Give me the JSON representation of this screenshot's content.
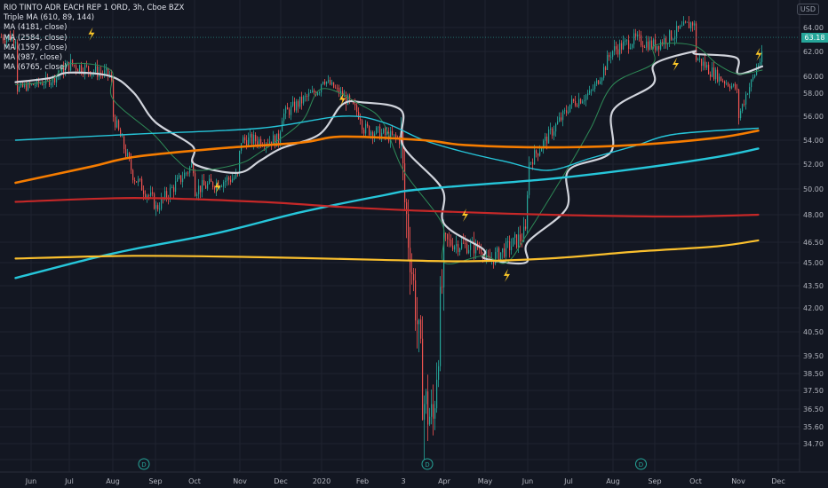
{
  "legend": {
    "title": "RIO TINTO ADR EACH REP 1 ORD, 3h, Cboe BZX",
    "studies": [
      "Triple MA (610, 89, 144)",
      "MA (4181, close)",
      "MA (2584, close)",
      "MA (1597, close)",
      "MA (987, close)",
      "MA (6765, close)"
    ]
  },
  "currency": "USD",
  "last_price": "63.18",
  "colors": {
    "background": "#131722",
    "grid": "#1f2330",
    "axis_text": "#b2b5be",
    "up": "#26a69a",
    "down": "#ef5350",
    "ma_white": "#d1d4dc",
    "ma_green": "#2e8b57",
    "ma_cyan_thin": "#26c6da",
    "ma_cyan_thick": "#26c6da",
    "ma_orange": "#f57c00",
    "ma_red": "#c62828",
    "ma_yellow": "#fbc02d",
    "bolt": "#ffca28",
    "event_marker": "#26a69a"
  },
  "chart_data": {
    "type": "candlestick",
    "y_axis_ticks": [
      "64.00",
      "62.00",
      "60.00",
      "58.00",
      "56.00",
      "54.00",
      "52.00",
      "50.00",
      "48.00",
      "46.50",
      "45.00",
      "43.50",
      "42.00",
      "40.50",
      "39.50",
      "38.50",
      "37.50",
      "36.50",
      "35.60",
      "34.70"
    ],
    "x_axis_ticks": [
      "Jun",
      "Jul",
      "Aug",
      "Sep",
      "Oct",
      "Nov",
      "Dec",
      "2020",
      "Feb",
      "3",
      "Apr",
      "May",
      "Jun",
      "Jul",
      "Aug",
      "Sep",
      "Oct",
      "Nov",
      "Dec"
    ],
    "event_markers": [
      {
        "label": "D",
        "date": "Sep 2019"
      },
      {
        "label": "D",
        "date": "Mar 2020"
      },
      {
        "label": "D",
        "date": "Aug 2020"
      }
    ],
    "price_anchors": [
      [
        "May 2019",
        58.5
      ],
      [
        "Jun 2019",
        59.5
      ],
      [
        "Jul 2019",
        61.0
      ],
      [
        "Jul 2019",
        60.0
      ],
      [
        "Aug 2019",
        56.0
      ],
      [
        "Aug 2019",
        51.0
      ],
      [
        "Aug 2019",
        49.0
      ],
      [
        "Sep 2019",
        48.5
      ],
      [
        "Sep 2019",
        52.0
      ],
      [
        "Oct 2019",
        50.0
      ],
      [
        "Oct 2019",
        51.0
      ],
      [
        "Nov 2019",
        54.0
      ],
      [
        "Nov 2019",
        54.0
      ],
      [
        "Dec 2019",
        56.0
      ],
      [
        "Dec 2019",
        58.5
      ],
      [
        "Jan 2020",
        59.8
      ],
      [
        "Jan 2020",
        56.0
      ],
      [
        "Feb 2020",
        55.0
      ],
      [
        "Feb 2020",
        54.0
      ],
      [
        "Mar 2020",
        49.5
      ],
      [
        "Mar 2020",
        43.5
      ],
      [
        "Mar 2020",
        37.0
      ],
      [
        "Mar 2020",
        35.7
      ],
      [
        "Mar 2020",
        44.0
      ],
      [
        "Apr 2020",
        46.5
      ],
      [
        "Apr 2020",
        46.0
      ],
      [
        "May 2020",
        45.0
      ],
      [
        "May 2020",
        47.0
      ],
      [
        "Jun 2020",
        52.0
      ],
      [
        "Jun 2020",
        56.5
      ],
      [
        "Jul 2020",
        57.0
      ],
      [
        "Jul 2020",
        58.0
      ],
      [
        "Jul 2020",
        62.0
      ],
      [
        "Aug 2020",
        63.0
      ],
      [
        "Sep 2020",
        62.5
      ],
      [
        "Sep 2020",
        64.5
      ],
      [
        "Oct 2020",
        61.5
      ],
      [
        "Oct 2020",
        60.0
      ],
      [
        "Oct 2020",
        58.5
      ],
      [
        "Nov 2020",
        56.0
      ],
      [
        "Nov 2020",
        61.0
      ],
      [
        "Nov 2020",
        63.2
      ]
    ],
    "moving_averages": [
      {
        "name": "MA white",
        "color_key": "ma_white",
        "width": 2.2,
        "points": [
          [
            "May 2019",
            59.3
          ],
          [
            "Jun 2019",
            59.8
          ],
          [
            "Jul 2019",
            60.3
          ],
          [
            "Jul 2019",
            60.0
          ],
          [
            "Aug 2019",
            58.0
          ],
          [
            "Sep 2019",
            55.5
          ],
          [
            "Sep 2019",
            53.5
          ],
          [
            "Oct 2019",
            52.0
          ],
          [
            "Oct 2019",
            51.3
          ],
          [
            "Nov 2019",
            52.3
          ],
          [
            "Dec 2019",
            53.3
          ],
          [
            "Dec 2019",
            54.5
          ],
          [
            "Jan 2020",
            57.0
          ],
          [
            "Feb 2020",
            57.2
          ],
          [
            "Feb 2020",
            56.5
          ],
          [
            "Mar 2020",
            53.5
          ],
          [
            "Mar 2020",
            50.0
          ],
          [
            "Apr 2020",
            47.5
          ],
          [
            "Apr 2020",
            46.0
          ],
          [
            "May 2020",
            45.3
          ],
          [
            "May 2020",
            45.0
          ],
          [
            "Jun 2020",
            46.5
          ],
          [
            "Jun 2020",
            48.5
          ],
          [
            "Jul 2020",
            51.5
          ],
          [
            "Jul 2020",
            53.0
          ],
          [
            "Aug 2020",
            56.5
          ],
          [
            "Aug 2020",
            59.0
          ],
          [
            "Sep 2020",
            61.0
          ],
          [
            "Sep 2020",
            62.0
          ],
          [
            "Oct 2020",
            61.8
          ],
          [
            "Oct 2020",
            61.5
          ],
          [
            "Nov 2020",
            60.2
          ],
          [
            "Nov 2020",
            60.8
          ]
        ]
      },
      {
        "name": "MA green",
        "color_key": "ma_green",
        "width": 1.0,
        "points": [
          [
            "May 2019",
            59.0
          ],
          [
            "Jun 2019",
            59.5
          ],
          [
            "Jul 2019",
            61.0
          ],
          [
            "Jul 2019",
            60.5
          ],
          [
            "Aug 2019",
            57.5
          ],
          [
            "Aug 2019",
            54.5
          ],
          [
            "Sep 2019",
            52.5
          ],
          [
            "Oct 2019",
            51.5
          ],
          [
            "Oct 2019",
            52.0
          ],
          [
            "Nov 2019",
            53.0
          ],
          [
            "Dec 2019",
            55.5
          ],
          [
            "Jan 2020",
            58.5
          ],
          [
            "Jan 2020",
            57.0
          ],
          [
            "Feb 2020",
            55.5
          ],
          [
            "Mar 2020",
            51.5
          ],
          [
            "Mar 2020",
            47.5
          ],
          [
            "Apr 2020",
            45.0
          ],
          [
            "Apr 2020",
            45.5
          ],
          [
            "May 2020",
            45.0
          ],
          [
            "Jun 2020",
            47.0
          ],
          [
            "Jun 2020",
            51.5
          ],
          [
            "Jul 2020",
            55.0
          ],
          [
            "Aug 2020",
            59.0
          ],
          [
            "Aug 2020",
            61.0
          ],
          [
            "Sep 2020",
            62.5
          ],
          [
            "Sep 2020",
            62.5
          ],
          [
            "Oct 2020",
            61.0
          ],
          [
            "Nov 2020",
            60.2
          ],
          [
            "Nov 2020",
            60.5
          ]
        ]
      },
      {
        "name": "MA cyan thin",
        "color_key": "ma_cyan_thin",
        "width": 1.4,
        "points": [
          [
            "May 2019",
            54.0
          ],
          [
            "Aug 2019",
            54.5
          ],
          [
            "Nov 2019",
            55.0
          ],
          [
            "Jan 2020",
            56.0
          ],
          [
            "Feb 2020",
            55.5
          ],
          [
            "Mar 2020",
            54.0
          ],
          [
            "Apr 2020",
            53.0
          ],
          [
            "May 2020",
            52.2
          ],
          [
            "Jun 2020",
            51.5
          ],
          [
            "Jul 2020",
            52.5
          ],
          [
            "Aug 2020",
            53.5
          ],
          [
            "Sep 2020",
            54.5
          ],
          [
            "Nov 2020",
            55.0
          ]
        ]
      },
      {
        "name": "MA cyan thick",
        "color_key": "ma_cyan_thick",
        "width": 2.4,
        "points": [
          [
            "May 2019",
            44.0
          ],
          [
            "Jul 2019",
            45.3
          ],
          [
            "Aug 2019",
            46.0
          ],
          [
            "Oct 2019",
            47.0
          ],
          [
            "Dec 2019",
            48.2
          ],
          [
            "Feb 2020",
            49.5
          ],
          [
            "Mar 2020",
            50.0
          ],
          [
            "Jun 2020",
            50.8
          ],
          [
            "Aug 2020",
            51.6
          ],
          [
            "Oct 2020",
            52.6
          ],
          [
            "Nov 2020",
            53.3
          ]
        ]
      },
      {
        "name": "MA orange",
        "color_key": "ma_orange",
        "width": 2.6,
        "points": [
          [
            "May 2019",
            50.5
          ],
          [
            "Jul 2019",
            51.8
          ],
          [
            "Aug 2019",
            52.6
          ],
          [
            "Oct 2019",
            53.3
          ],
          [
            "Dec 2019",
            53.8
          ],
          [
            "Jan 2020",
            54.3
          ],
          [
            "Mar 2020",
            54.0
          ],
          [
            "Apr 2020",
            53.6
          ],
          [
            "Jun 2020",
            53.4
          ],
          [
            "Aug 2020",
            53.6
          ],
          [
            "Oct 2020",
            54.2
          ],
          [
            "Nov 2020",
            54.8
          ]
        ]
      },
      {
        "name": "MA red",
        "color_key": "ma_red",
        "width": 2.2,
        "points": [
          [
            "May 2019",
            49.0
          ],
          [
            "Aug 2019",
            49.3
          ],
          [
            "Nov 2019",
            49.0
          ],
          [
            "Jan 2020",
            48.6
          ],
          [
            "Mar 2020",
            48.3
          ],
          [
            "Jun 2020",
            48.0
          ],
          [
            "Sep 2020",
            47.9
          ],
          [
            "Nov 2020",
            48.0
          ]
        ]
      },
      {
        "name": "MA yellow",
        "color_key": "ma_yellow",
        "width": 2.2,
        "points": [
          [
            "May 2019",
            45.3
          ],
          [
            "Aug 2019",
            45.5
          ],
          [
            "Nov 2019",
            45.4
          ],
          [
            "Feb 2020",
            45.2
          ],
          [
            "Apr 2020",
            45.1
          ],
          [
            "Jun 2020",
            45.3
          ],
          [
            "Aug 2020",
            45.8
          ],
          [
            "Oct 2020",
            46.2
          ],
          [
            "Nov 2020",
            46.6
          ]
        ]
      }
    ],
    "bolts": [
      {
        "date": "Jul 2019",
        "price": 63.5
      },
      {
        "date": "Oct 2019",
        "price": 50.2
      },
      {
        "date": "Jan 2020",
        "price": 57.5
      },
      {
        "date": "Apr 2020",
        "price": 48.0
      },
      {
        "date": "May 2020",
        "price": 44.2
      },
      {
        "date": "Sep 2020",
        "price": 61.0
      },
      {
        "date": "Nov 2020",
        "price": 61.8
      }
    ]
  }
}
